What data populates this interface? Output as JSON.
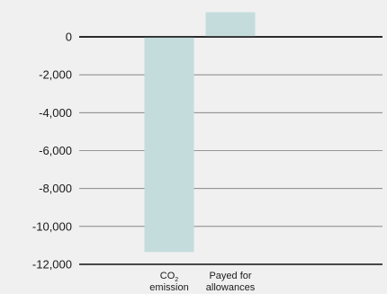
{
  "chart_data": {
    "type": "bar",
    "title": "",
    "xlabel": "",
    "ylabel": "",
    "ylim": [
      -12000,
      2000
    ],
    "yticks": [
      0,
      -2000,
      -4000,
      -6000,
      -8000,
      -10000,
      -12000
    ],
    "ytick_labels": [
      "0",
      "-2,000",
      "-4,000",
      "-6,000",
      "-8,000",
      "-10,000",
      "-12,000"
    ],
    "grid": true,
    "categories": [
      {
        "line1": "CO",
        "line1_sub": "2",
        "line2": "emission"
      },
      {
        "line1": "Payed for",
        "line1_sub": "",
        "line2": "allowances"
      }
    ],
    "values": [
      -11350,
      1300
    ],
    "colors": {
      "bar": "#c5dcdd",
      "gridline": "#777777",
      "zero_line": "#111111",
      "background": "#f0f0f0"
    }
  }
}
